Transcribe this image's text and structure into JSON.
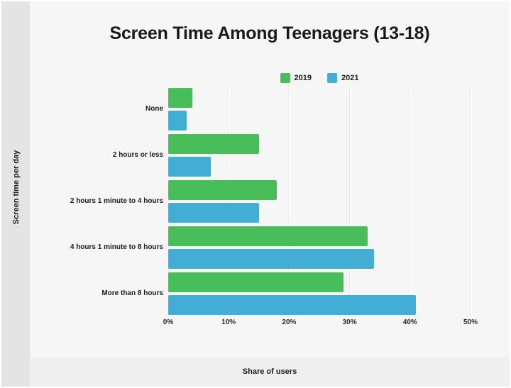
{
  "title": "Screen Time Among Teenagers (13-18)",
  "chart_data": {
    "type": "bar",
    "orientation": "horizontal",
    "title": "Screen Time Among Teenagers (13-18)",
    "xlabel": "Share of users",
    "ylabel": "Screen time per day",
    "categories": [
      "None",
      "2 hours or less",
      "2 hours 1 minute to 4 hours",
      "4 hours 1 minute to 8 hours",
      "More than 8 hours"
    ],
    "series": [
      {
        "name": "2019",
        "color": "#48be5a",
        "values": [
          4,
          15,
          18,
          33,
          29
        ]
      },
      {
        "name": "2021",
        "color": "#42aed6",
        "values": [
          3,
          7,
          15,
          34,
          41
        ]
      }
    ],
    "value_unit": "%",
    "xlim": [
      0,
      50
    ],
    "x_ticks": [
      {
        "value": 0,
        "label": "0%"
      },
      {
        "value": 10,
        "label": "10%"
      },
      {
        "value": 20,
        "label": "20%"
      },
      {
        "value": 30,
        "label": "30%"
      },
      {
        "value": 40,
        "label": "40%"
      },
      {
        "value": 50,
        "label": "50%"
      }
    ],
    "grid": true,
    "legend_position": "top-center"
  },
  "colors": {
    "page_background": "#ffffff",
    "panel_background": "#f6f6f6",
    "left_band": "#e4e4e4",
    "footer_band": "#efefef",
    "gridline": "#fdfdfd",
    "text": "#1c1c1c",
    "series_2019": "#48be5a",
    "series_2021": "#42aed6"
  }
}
